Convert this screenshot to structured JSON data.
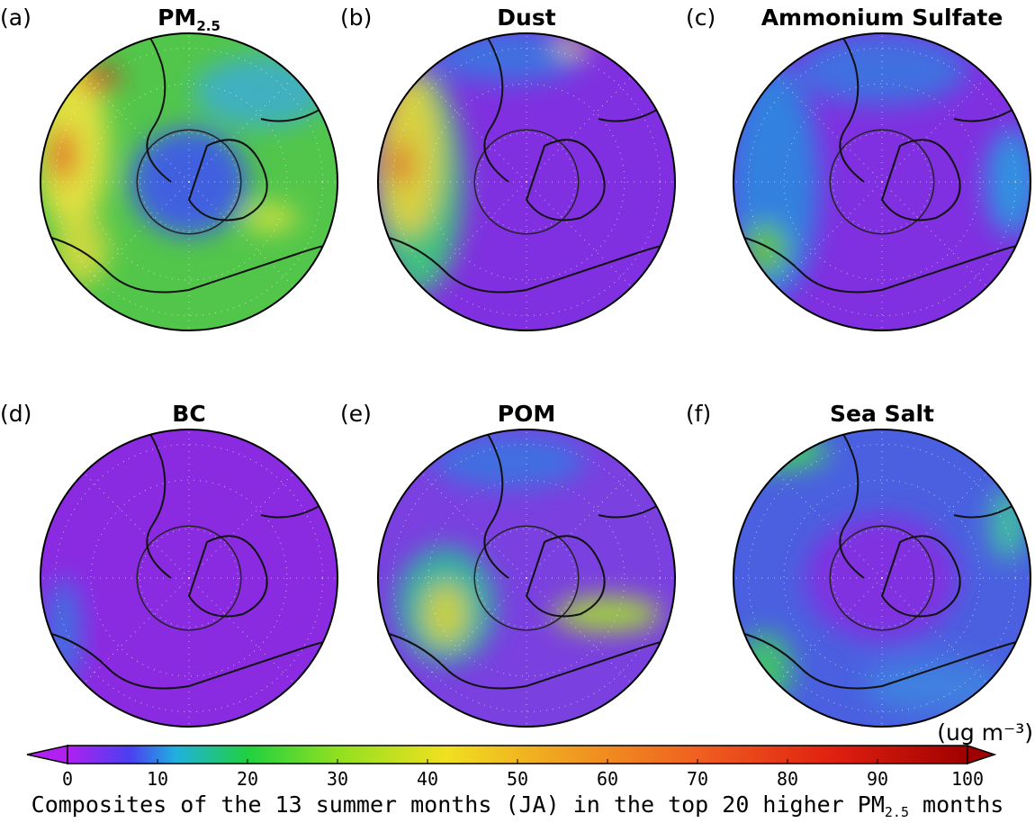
{
  "panels": [
    {
      "label": "(a)",
      "title": {
        "text": "PM",
        "subscript": "2.5"
      }
    },
    {
      "label": "(b)",
      "title": {
        "text": "Dust"
      }
    },
    {
      "label": "(c)",
      "title": {
        "text": "Ammonium Sulfate"
      }
    },
    {
      "label": "(d)",
      "title": {
        "text": "BC"
      }
    },
    {
      "label": "(e)",
      "title": {
        "text": "POM"
      }
    },
    {
      "label": "(f)",
      "title": {
        "text": "Sea Salt"
      }
    }
  ],
  "colorbar": {
    "unit": "(ug m⁻³)",
    "ticks": [
      0,
      10,
      20,
      30,
      40,
      50,
      60,
      70,
      80,
      90,
      100
    ]
  },
  "caption": {
    "parts": [
      "Composites of the 13 summer months (JA) in the top 20 higher PM",
      "2.5",
      " months"
    ]
  }
}
